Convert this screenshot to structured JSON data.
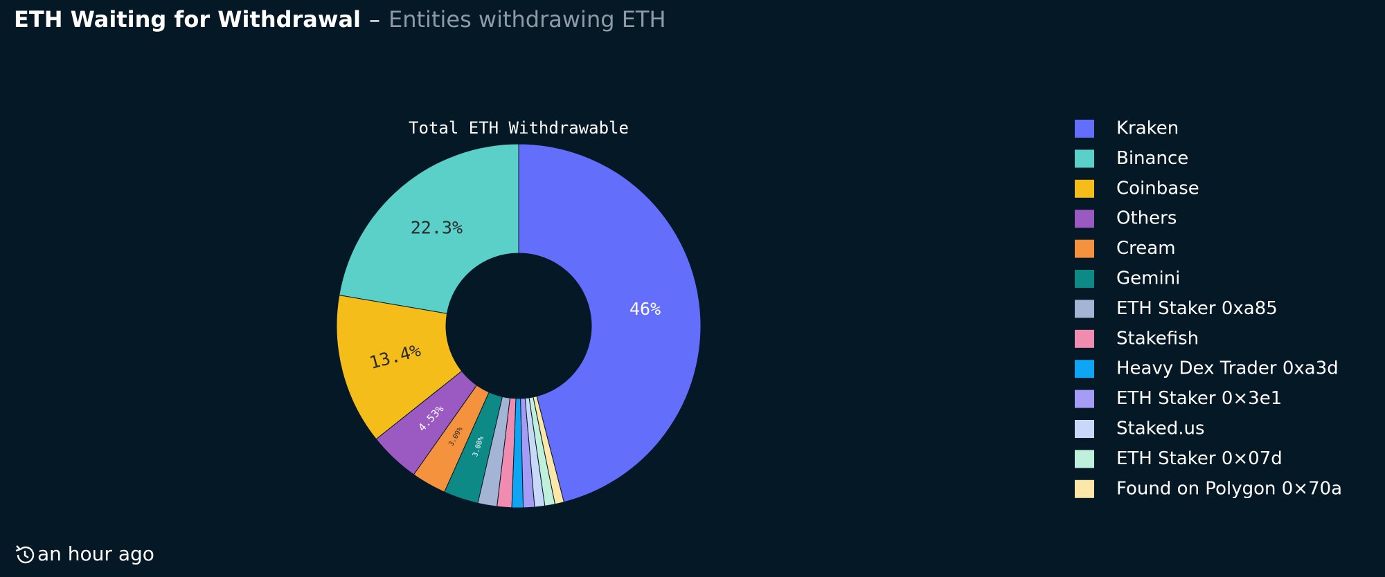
{
  "header": {
    "title": "ETH Waiting for Withdrawal",
    "separator": "–",
    "subtitle": "Entities withdrawing ETH"
  },
  "chart_data": {
    "type": "pie",
    "title": "Total ETH Withdrawable",
    "hole": true,
    "categories": [
      "Kraken",
      "Binance",
      "Coinbase",
      "Others",
      "Cream",
      "Gemini",
      "ETH Staker 0xa85",
      "Stakefish",
      "Heavy Dex Trader 0xa3d",
      "ETH Staker 0×3e1",
      "Staked.us",
      "ETH Staker 0×07d",
      "Found on Polygon 0×70a"
    ],
    "values": [
      46,
      22.3,
      13.4,
      4.53,
      3.09,
      3.08,
      1.7,
      1.3,
      1.0,
      1.0,
      0.9,
      0.9,
      0.8
    ],
    "value_labels": [
      "46%",
      "22.3%",
      "13.4%",
      "4.53%",
      "3.09%",
      "3.08%",
      null,
      null,
      null,
      null,
      null,
      null,
      null
    ],
    "colors": [
      "#636efa",
      "#5ad0c8",
      "#f5bd1a",
      "#9b59c2",
      "#f5923e",
      "#0d8a86",
      "#a3b4d4",
      "#f08cb0",
      "#0ea5f5",
      "#a59cf5",
      "#c8d8f8",
      "#bff0dc",
      "#fde7a8"
    ],
    "legend": "right"
  },
  "footer": {
    "updated": "an hour ago"
  }
}
